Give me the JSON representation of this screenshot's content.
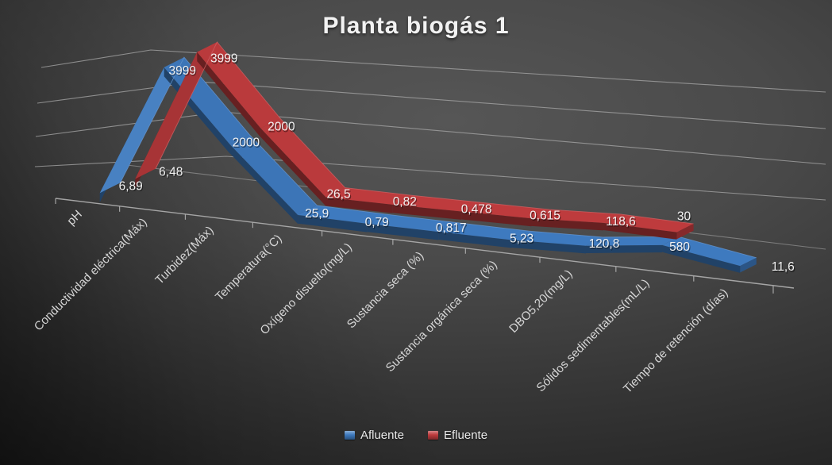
{
  "title": "Planta biogás 1",
  "chart_data": {
    "type": "line",
    "projection": "3d",
    "title": "Planta biogás 1",
    "categories": [
      "pH",
      "Conductividad eléctrica(Máx)",
      "Turbidez(Máx)",
      "Temperatura(°C)",
      "Oxígeno disuelto(mg/L)",
      "Sustancia seca (%)",
      "Sustancia orgánica seca (%)",
      "DBO5,20(mg/L)",
      "Sólidos sedimentables(mL/L)",
      "Tiempo de retención (días)"
    ],
    "series": [
      {
        "name": "Afluente",
        "color": "#3E7ABF",
        "values": [
          6.89,
          3999,
          2000,
          25.9,
          0.79,
          0.817,
          5.23,
          120.8,
          580,
          11.6
        ],
        "value_labels": [
          "6,89",
          "3999",
          "2000",
          "25,9",
          "0,79",
          "0,817",
          "5,23",
          "120,8",
          "580",
          "11,6"
        ]
      },
      {
        "name": "Efluente",
        "color": "#BE3B3D",
        "values": [
          6.48,
          3999,
          2000,
          26.5,
          0.82,
          0.478,
          0.615,
          118.6,
          30
        ],
        "value_labels": [
          "6,48",
          "3999",
          "2000",
          "26,5",
          "0,82",
          "0,478",
          "0,615",
          "118,6",
          "30"
        ]
      }
    ],
    "ylim": [
      0,
      4000
    ],
    "gridlines": [
      1000,
      2000,
      3000,
      4000
    ],
    "value_axis_labels_visible": false,
    "grid_on": true,
    "legend_position": "bottom",
    "grid_color": "#A3A3A3",
    "axis_color": "#ABABAB",
    "data_label_color": "#F1F1F1",
    "category_label_color": "#D6D6D6",
    "title_color": "#F2F2F2"
  }
}
